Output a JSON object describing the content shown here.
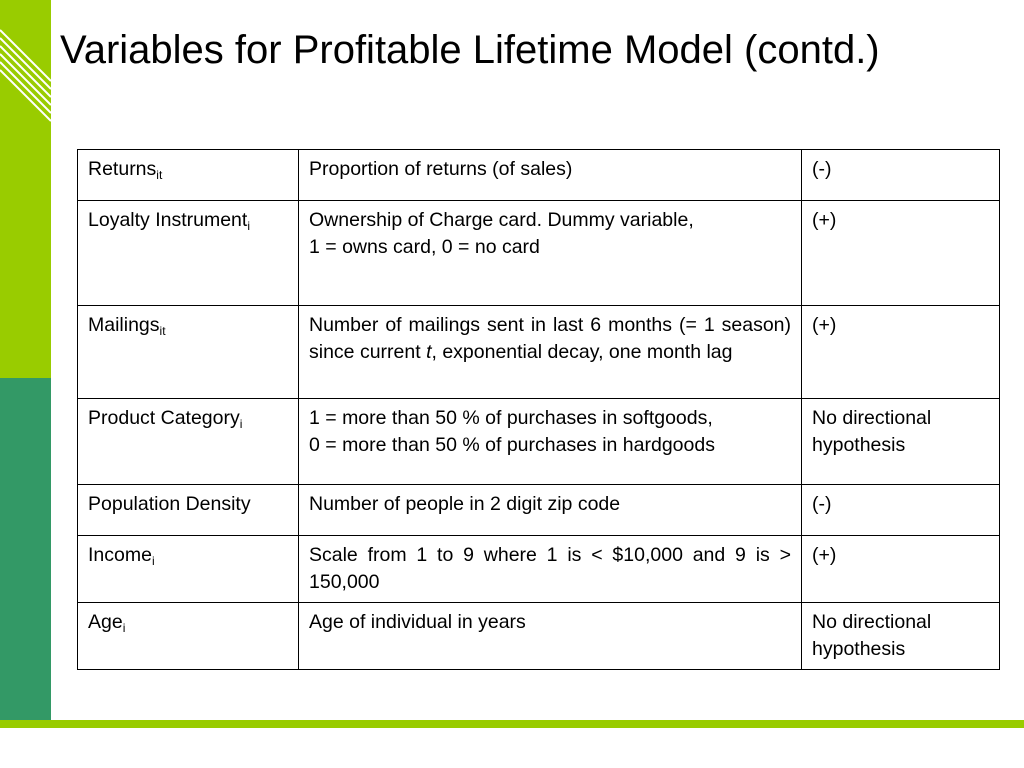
{
  "slide": {
    "title": "Variables for Profitable Lifetime Model (contd.)"
  },
  "colors": {
    "accent_lime": "#99cc00",
    "accent_green": "#339966",
    "text": "#000000",
    "background": "#ffffff"
  },
  "table": {
    "rows": [
      {
        "variable": "Returns",
        "subscript": "it",
        "description": "Proportion of returns (of sales)",
        "description_italic": "",
        "description_after": "",
        "hypothesis": "(-)"
      },
      {
        "variable": "Loyalty Instrument",
        "subscript": "i",
        "description": "Ownership of Charge card. Dummy variable,",
        "description_line2": "1 = owns card, 0 = no card",
        "hypothesis": "(+)"
      },
      {
        "variable": "Mailings",
        "subscript": "it",
        "description": "Number of mailings sent in last 6 months (= 1 season) since current ",
        "description_italic": "t",
        "description_after": ", exponential decay, one month lag",
        "hypothesis": "(+)"
      },
      {
        "variable": "Product Category",
        "subscript": "i",
        "description": "1 = more than 50 % of purchases in softgoods,",
        "description_line2": "0 = more than 50 % of purchases in hardgoods",
        "hypothesis": "No  directional hypothesis"
      },
      {
        "variable": "Population Density",
        "subscript": "",
        "description": "Number of people in 2 digit zip code",
        "hypothesis": "(-)"
      },
      {
        "variable": "Income",
        "subscript": "i",
        "description": "Scale from 1 to 9 where 1 is < $10,000 and 9 is > 150,000",
        "hypothesis": "(+)"
      },
      {
        "variable": "Age",
        "subscript": "i",
        "description": "Age of individual in years",
        "hypothesis": "No directional hypothesis"
      }
    ]
  }
}
